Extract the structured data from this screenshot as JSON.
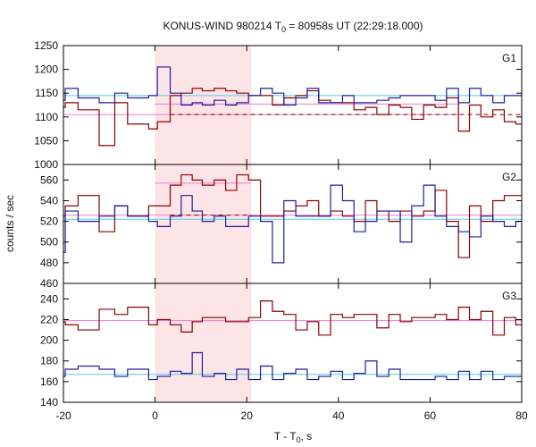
{
  "chart_data": {
    "type": "line",
    "title_main": "KONUS-WIND 980214 T",
    "title_sub": "0",
    "title_rest": " = 80958s UT (22:29:18.000)",
    "xlabel_main": "T - T",
    "xlabel_sub": "0",
    "xlabel_rest": ", s",
    "ylabel": "counts / sec",
    "xlim": [
      -20,
      80
    ],
    "xticks": [
      -20,
      0,
      20,
      40,
      60,
      80
    ],
    "highlight": {
      "x0": 0.0,
      "x1": 21.0,
      "color": "#fde4e6"
    },
    "colors": {
      "red": "#8b0000",
      "blue": "#1f1f9c",
      "cyan": "#57c9e8",
      "pink": "#e87fd0"
    },
    "panels": [
      {
        "label": "G1",
        "ylim": [
          1000,
          1250
        ],
        "yticks": [
          1000,
          1050,
          1100,
          1150,
          1200,
          1250
        ],
        "bin_edges": [
          -22,
          -19.6,
          -16.8,
          -12.2,
          -8.8,
          -6,
          -1.4,
          0.5,
          3.3,
          5.7,
          8.1,
          10.3,
          12.9,
          15.4,
          17.8,
          20.4,
          23,
          25.6,
          28.1,
          30.7,
          33.2,
          35.7,
          38.3,
          40.9,
          43.4,
          45.9,
          48.4,
          51,
          53.5,
          56,
          58.6,
          61.1,
          63.6,
          66.2,
          68.6,
          71.1,
          73.7,
          76.2,
          78.7,
          81
        ],
        "series": [
          {
            "name": "",
            "color": "red",
            "values": [
              1120,
              1130,
              1115,
              1040,
              1130,
              1085,
              1075,
              1090,
              1145,
              1150,
              1160,
              1155,
              1160,
              1155,
              1150,
              1145,
              1145,
              1125,
              1140,
              1145,
              1155,
              1135,
              1130,
              1130,
              1115,
              1120,
              1105,
              1125,
              1120,
              1095,
              1125,
              1120,
              1140,
              1070,
              1125,
              1100,
              1115,
              1090,
              1085
            ]
          },
          {
            "name": "",
            "color": "blue",
            "values": [
              1135,
              1160,
              1140,
              1130,
              1150,
              1140,
              1145,
              1205,
              1150,
              1125,
              1130,
              1125,
              1135,
              1125,
              1130,
              1145,
              1160,
              1150,
              1125,
              1140,
              1160,
              1130,
              1130,
              1145,
              1130,
              1130,
              1135,
              1140,
              1145,
              1145,
              1145,
              1135,
              1160,
              1130,
              1160,
              1145,
              1130,
              1145,
              1145
            ]
          }
        ],
        "refs": [
          {
            "color": "cyan",
            "x0": -20,
            "x1": 80,
            "y": 1145,
            "dash": false
          },
          {
            "color": "pink",
            "x0": -20,
            "x1": 66.5,
            "y": 1105,
            "dash": false
          },
          {
            "color": "pink",
            "x0": 0,
            "x1": 66.5,
            "y": 1127,
            "dash": false
          },
          {
            "color": "red",
            "x0": 3.3,
            "x1": 80,
            "y": 1105,
            "dash": true
          }
        ]
      },
      {
        "label": "G2",
        "ylim": [
          460,
          575
        ],
        "yticks": [
          460,
          480,
          500,
          520,
          540,
          560
        ],
        "bin_edges": [
          -22,
          -19.6,
          -16.8,
          -12.2,
          -8.8,
          -6,
          -1.4,
          0.5,
          3.3,
          5.7,
          8.1,
          10.3,
          12.9,
          15.4,
          17.8,
          20.4,
          23,
          25.6,
          28.1,
          30.7,
          33.2,
          35.7,
          38.3,
          40.9,
          43.4,
          45.9,
          48.4,
          51,
          53.5,
          56,
          58.6,
          61.1,
          63.6,
          66.2,
          68.6,
          71.1,
          73.7,
          76.2,
          78.7,
          81
        ],
        "series": [
          {
            "name": "",
            "color": "red",
            "values": [
              525,
              535,
              545,
              510,
              535,
              525,
              535,
              535,
              555,
              565,
              560,
              555,
              560,
              550,
              565,
              560,
              525,
              525,
              530,
              535,
              540,
              525,
              530,
              525,
              520,
              540,
              530,
              520,
              530,
              525,
              530,
              550,
              520,
              485,
              535,
              520,
              540,
              545,
              545
            ]
          },
          {
            "name": "",
            "color": "blue",
            "values": [
              490,
              530,
              520,
              525,
              535,
              525,
              520,
              515,
              525,
              545,
              530,
              520,
              525,
              515,
              515,
              525,
              520,
              480,
              540,
              525,
              525,
              525,
              555,
              540,
              510,
              520,
              530,
              530,
              500,
              535,
              555,
              525,
              515,
              510,
              505,
              525,
              520,
              515,
              520
            ]
          }
        ],
        "refs": [
          {
            "color": "cyan",
            "x0": -20,
            "x1": 80,
            "y": 522,
            "dash": false
          },
          {
            "color": "pink",
            "x0": -20,
            "x1": 80,
            "y": 526,
            "dash": false
          },
          {
            "color": "pink",
            "x0": 0,
            "x1": 21,
            "y": 557,
            "dash": false
          },
          {
            "color": "red",
            "x0": 3.3,
            "x1": 21,
            "y": 526,
            "dash": true
          }
        ]
      },
      {
        "label": "G3",
        "ylim": [
          140,
          255
        ],
        "yticks": [
          140,
          160,
          180,
          200,
          220,
          240
        ],
        "bin_edges": [
          -22,
          -19.6,
          -16.8,
          -12.2,
          -8.8,
          -6,
          -1.4,
          0.5,
          3.3,
          5.7,
          8.1,
          10.3,
          12.9,
          15.4,
          17.8,
          20.4,
          23,
          25.6,
          28.1,
          30.7,
          33.2,
          35.7,
          38.3,
          40.9,
          43.4,
          45.9,
          48.4,
          51,
          53.5,
          56,
          58.6,
          61.1,
          63.6,
          66.2,
          68.6,
          71.1,
          73.7,
          76.2,
          78.7,
          81
        ],
        "series": [
          {
            "name": "",
            "color": "red",
            "values": [
              218,
              215,
              210,
              230,
              225,
              232,
              215,
              220,
              215,
              208,
              218,
              222,
              222,
              218,
              218,
              222,
              238,
              228,
              225,
              210,
              218,
              205,
              225,
              222,
              225,
              225,
              212,
              225,
              218,
              222,
              222,
              225,
              220,
              232,
              220,
              228,
              205,
              222,
              215
            ]
          },
          {
            "name": "",
            "color": "blue",
            "values": [
              165,
              172,
              175,
              172,
              165,
              172,
              162,
              165,
              170,
              168,
              188,
              165,
              168,
              162,
              172,
              162,
              175,
              162,
              168,
              172,
              162,
              165,
              170,
              162,
              168,
              180,
              165,
              172,
              162,
              162,
              162,
              165,
              162,
              170,
              162,
              170,
              162,
              165,
              165
            ]
          }
        ],
        "refs": [
          {
            "color": "cyan",
            "x0": -20,
            "x1": 80,
            "y": 167,
            "dash": false
          },
          {
            "color": "pink",
            "x0": -20,
            "x1": 80,
            "y": 219,
            "dash": false
          }
        ]
      }
    ]
  }
}
